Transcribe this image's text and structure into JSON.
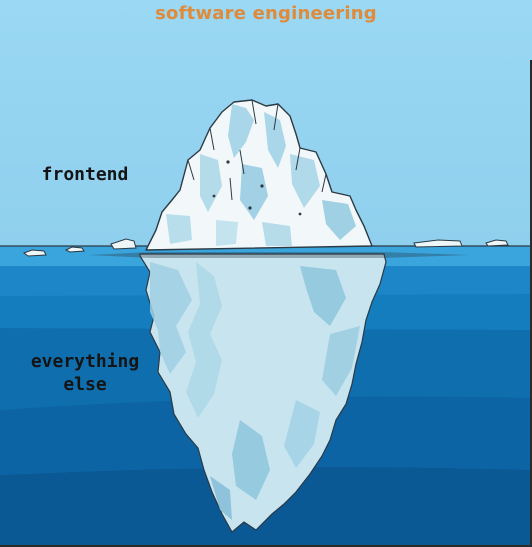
{
  "title": "software engineering",
  "labels": {
    "above_water": "frontend",
    "below_water_line1": "everything",
    "below_water_line2": "else"
  },
  "colors": {
    "sky": "#93d3f0",
    "title": "#e08a3c",
    "water_top": "#2a9ad6",
    "water_deep": "#0b5a97",
    "ice_light": "#eef6f8",
    "ice_shadow": "#a9d3e4",
    "ice_submerged": "#c5e3ee",
    "outline": "#2b3a45"
  },
  "icons": [
    "iceberg-illustration"
  ]
}
